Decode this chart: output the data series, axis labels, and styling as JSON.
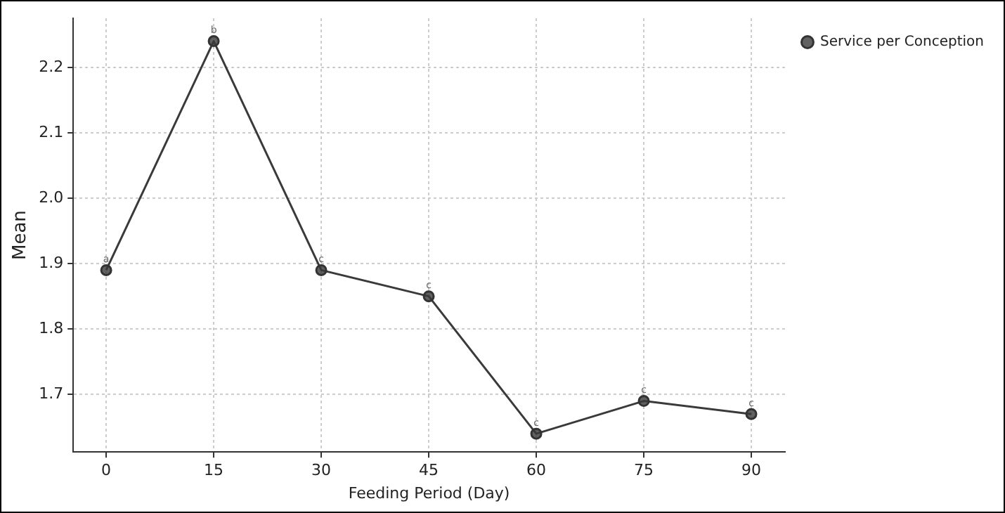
{
  "chart_data": {
    "type": "line",
    "xlabel": "Feeding Period (Day)",
    "ylabel": "Mean",
    "x": [
      0,
      15,
      30,
      45,
      60,
      75,
      90
    ],
    "series": [
      {
        "name": "Service per Conception",
        "color": "#3a3a3a",
        "values": [
          1.89,
          2.24,
          1.89,
          1.85,
          1.64,
          1.69,
          1.67
        ]
      }
    ],
    "annotations": [
      {
        "text": "a",
        "x": 0,
        "y": 1.89
      },
      {
        "text": "b",
        "x": 15,
        "y": 2.24
      },
      {
        "text": "c",
        "x": 30,
        "y": 1.89
      },
      {
        "text": "c",
        "x": 45,
        "y": 1.85
      },
      {
        "text": "c",
        "x": 60,
        "y": 1.64
      },
      {
        "text": "c",
        "x": 75,
        "y": 1.69
      },
      {
        "text": "c",
        "x": 90,
        "y": 1.67
      }
    ],
    "xlim": [
      -4.6,
      94.7
    ],
    "xticks": [
      0,
      15,
      30,
      45,
      60,
      75,
      90
    ],
    "ylim": [
      1.612,
      2.275
    ],
    "yticks": [
      1.7,
      1.8,
      1.9,
      {
        "value": 2,
        "label": "2.0"
      },
      2.1,
      2.2
    ],
    "grid": true,
    "legend": "top right",
    "marker": "circle",
    "line_style": "solid"
  }
}
